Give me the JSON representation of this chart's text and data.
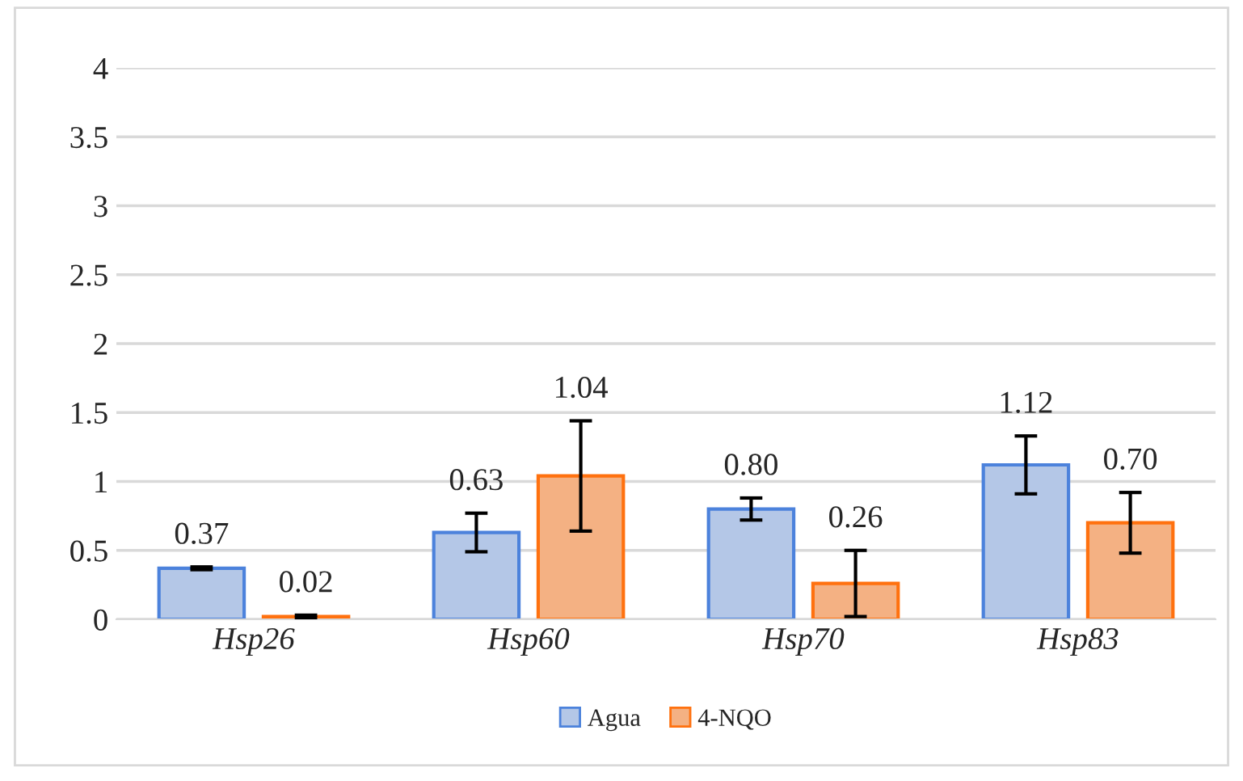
{
  "chart_data": {
    "type": "bar",
    "categories": [
      "Hsp26",
      "Hsp60",
      "Hsp70",
      "Hsp83"
    ],
    "series": [
      {
        "name": "Agua",
        "color": "#b4c7e7",
        "values": [
          0.37,
          0.63,
          0.8,
          1.12
        ],
        "errors": [
          0.01,
          0.14,
          0.08,
          0.21
        ],
        "value_labels": [
          "0.37",
          "0.63",
          "0.80",
          "1.12"
        ]
      },
      {
        "name": "4-NQO",
        "color": "#f4b183",
        "values": [
          0.02,
          1.04,
          0.26,
          0.7
        ],
        "errors": [
          0.01,
          0.4,
          0.24,
          0.22
        ],
        "value_labels": [
          "0.02",
          "1.04",
          "0.26",
          "0.70"
        ]
      }
    ],
    "ylim": [
      0,
      4
    ],
    "yticks": [
      0,
      0.5,
      1,
      1.5,
      2,
      2.5,
      3,
      3.5,
      4
    ],
    "grid": "y",
    "legend": "bottom"
  }
}
